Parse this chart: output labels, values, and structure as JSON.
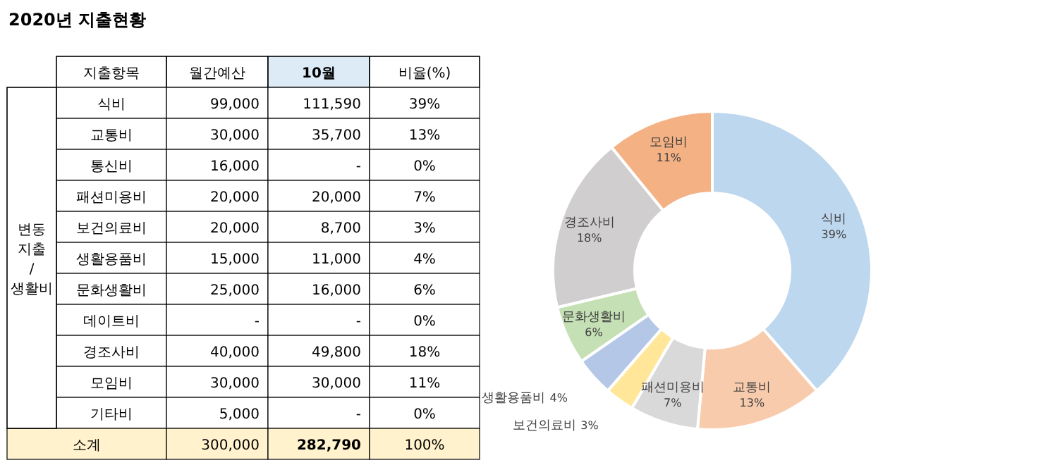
{
  "chart_data": [
    {
      "type": "other",
      "title": "2020년 지출현황",
      "annotations": [
        "변동\n지출\n/\n생활비",
        "지출항목",
        "월간예산",
        "10월",
        "비율(%)",
        "식비",
        "99,000",
        "111,590",
        "39%",
        "교통비",
        "30,000",
        "35,700",
        "13%",
        "통신비",
        "16,000",
        "-",
        "0%",
        "패션미용비",
        "20,000",
        "20,000",
        "7%",
        "보건의료비",
        "20,000",
        "8,700",
        "3%",
        "생활용품비",
        "15,000",
        "11,000",
        "4%",
        "문화생활비",
        "25,000",
        "16,000",
        "6%",
        "데이트비",
        "-",
        "-",
        "0%",
        "경조사비",
        "40,000",
        "49,800",
        "18%",
        "모임비",
        "30,000",
        "30,000",
        "11%",
        "기타비",
        "5,000",
        "-",
        "0%",
        "소계",
        "300,000",
        "282,790",
        "100%"
      ]
    },
    {
      "type": "donut",
      "categories": [
        "식비",
        "교통비",
        "패션미용비",
        "보건의료비",
        "생활용품비",
        "문화생활비",
        "경조사비",
        "모임비"
      ],
      "values": [
        39,
        13,
        7,
        3,
        4,
        6,
        18,
        11
      ],
      "colors": [
        "#bdd7ee",
        "#f8cbad",
        "#d9d9d9",
        "#ffe699",
        "#b4c7e7",
        "#c5e0b4",
        "#d0cece",
        "#f4b183"
      ],
      "value_labels": [
        "39%",
        "13%",
        "7%",
        "3%",
        "4%",
        "6%",
        "18%",
        "11%"
      ]
    }
  ]
}
